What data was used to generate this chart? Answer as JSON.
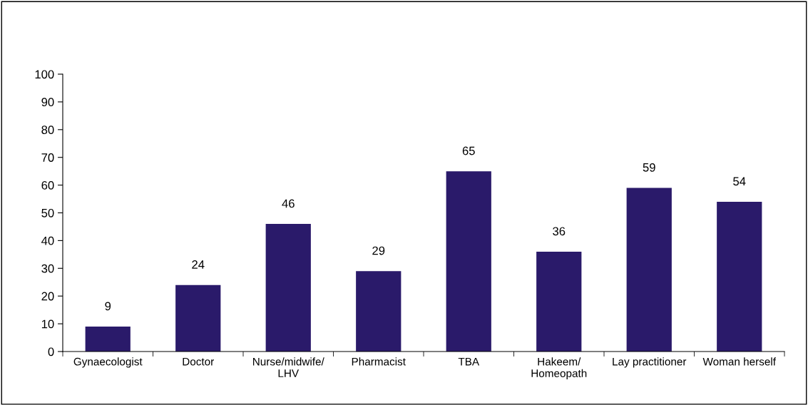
{
  "chart_data": {
    "type": "bar",
    "categories": [
      "Gynaecologist",
      "Doctor",
      "Nurse/midwife/\nLHV",
      "Pharmacist",
      "TBA",
      "Hakeem/\nHomeopath",
      "Lay practitioner",
      "Woman herself"
    ],
    "values": [
      9,
      24,
      46,
      29,
      65,
      36,
      59,
      54
    ],
    "color": "#2a1a6a",
    "ylim": [
      0,
      100
    ],
    "yticks": [
      0,
      10,
      20,
      30,
      40,
      50,
      60,
      70,
      80,
      90,
      100
    ],
    "data_labels": true,
    "grid": false,
    "legend": false
  }
}
